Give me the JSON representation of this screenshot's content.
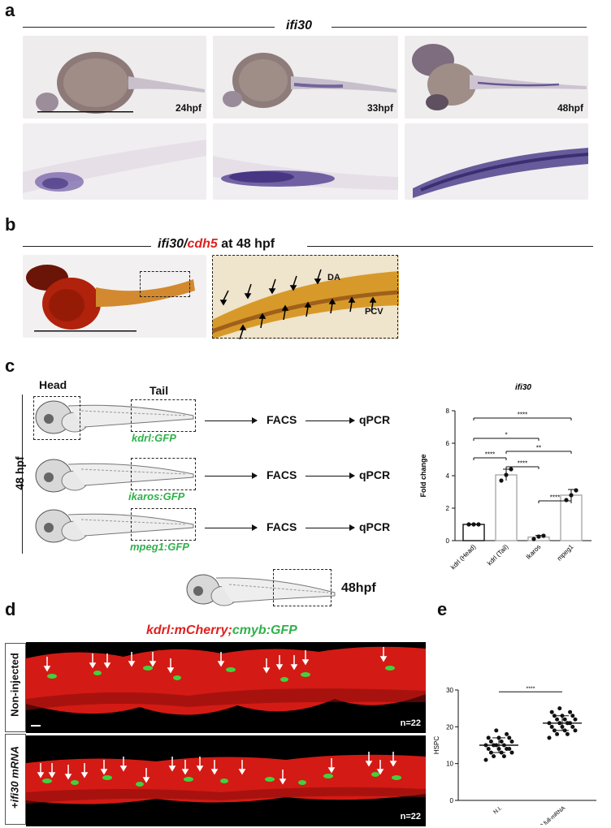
{
  "panel_a": {
    "letter": "a",
    "gene": "ifi30",
    "stages": [
      "24hpf",
      "33hpf",
      "48hpf"
    ]
  },
  "panel_b": {
    "letter": "b",
    "title_gene1": "ifi30/",
    "title_gene2": "cdh5",
    "title_suffix": " at 48 hpf",
    "label_da": "DA",
    "label_pcv": "PCV"
  },
  "panel_c": {
    "letter": "c",
    "head_label": "Head",
    "tail_label": "Tail",
    "side_label": "48 hpf",
    "rows": [
      {
        "line": "kdrl:GFP",
        "step1": "FACS",
        "step2": "qPCR"
      },
      {
        "line": "ikaros:GFP",
        "step1": "FACS",
        "step2": "qPCR"
      },
      {
        "line": "mpeg1:GFP",
        "step1": "FACS",
        "step2": "qPCR"
      }
    ],
    "chart_title": "ifi30",
    "ylabel": "Fold change",
    "significance": [
      "****",
      "*",
      "****",
      "**",
      "****",
      "****"
    ]
  },
  "panel_d": {
    "letter": "d",
    "embryo_stage": "48hpf",
    "title_red": "kdrl:mCherry;",
    "title_green": "cmyb:GFP",
    "row1_label": "Non-injected",
    "row2_label_prefix": "+",
    "row2_label_italic": "ifi30 mRNA",
    "n1": "n=22",
    "n2": "n=22"
  },
  "panel_e": {
    "letter": "e",
    "ylabel": "HSPC",
    "significance": "****"
  },
  "chart_data": [
    {
      "type": "bar",
      "title": "ifi30",
      "ylabel": "Fold change",
      "xlabel": "",
      "categories": [
        "kdrl (Head)",
        "kdrl (Tail)",
        "Ikaros",
        "mpeg1"
      ],
      "values": [
        1.0,
        4.05,
        0.22,
        2.8
      ],
      "errors": [
        0.02,
        0.35,
        0.1,
        0.35
      ],
      "points": [
        [
          1.0,
          1.0,
          1.0
        ],
        [
          3.7,
          4.05,
          4.4
        ],
        [
          0.1,
          0.25,
          0.3
        ],
        [
          2.5,
          2.8,
          3.1
        ]
      ],
      "ylim": [
        0,
        8
      ],
      "yticks": [
        0,
        2,
        4,
        6,
        8
      ]
    },
    {
      "type": "scatter",
      "ylabel": "HSPC",
      "xlabel": "",
      "categories": [
        "N.I.",
        "+ifi30 full-mRNA"
      ],
      "means": [
        15,
        21
      ],
      "sd": [
        2,
        2
      ],
      "points": [
        [
          11,
          12,
          12,
          13,
          13,
          13,
          14,
          14,
          14,
          14,
          15,
          15,
          15,
          15,
          16,
          16,
          16,
          17,
          17,
          17,
          18,
          19
        ],
        [
          17,
          18,
          18,
          19,
          19,
          19,
          20,
          20,
          20,
          21,
          21,
          21,
          21,
          22,
          22,
          22,
          23,
          23,
          23,
          24,
          24,
          25
        ]
      ],
      "ylim": [
        0,
        30
      ],
      "yticks": [
        0,
        10,
        20,
        30
      ]
    }
  ]
}
